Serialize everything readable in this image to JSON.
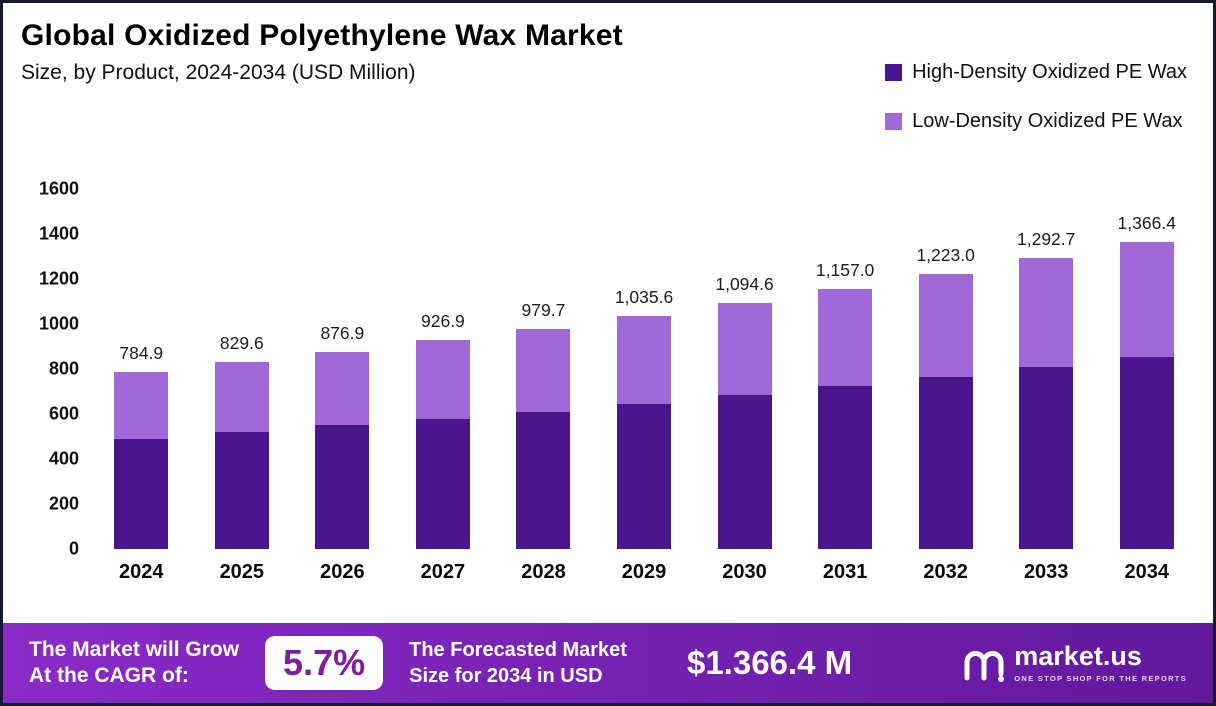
{
  "header": {
    "title": "Global Oxidized Polyethylene Wax Market",
    "subtitle": "Size, by Product, 2024-2034 (USD Million)"
  },
  "legend": {
    "items": [
      {
        "label": "High-Density Oxidized PE Wax",
        "color": "#49168B"
      },
      {
        "label": "Low-Density Oxidized PE Wax",
        "color": "#A168D8"
      }
    ]
  },
  "chart_data": {
    "type": "bar",
    "stacked": true,
    "title": "Global Oxidized Polyethylene Wax Market Size, by Product, 2024-2034 (USD Million)",
    "categories": [
      "2024",
      "2025",
      "2026",
      "2027",
      "2028",
      "2029",
      "2030",
      "2031",
      "2032",
      "2033",
      "2034"
    ],
    "series": [
      {
        "name": "High-Density Oxidized PE Wax",
        "color": "#49168B",
        "values": [
          490,
          520,
          550,
          580,
          610,
          645,
          685,
          725,
          765,
          810,
          855
        ]
      },
      {
        "name": "Low-Density Oxidized PE Wax",
        "color": "#A168D8",
        "values": [
          294.9,
          309.6,
          326.9,
          346.9,
          369.7,
          390.6,
          409.6,
          432.0,
          458.0,
          482.7,
          511.4
        ]
      }
    ],
    "totals": [
      784.9,
      829.6,
      876.9,
      926.9,
      979.7,
      1035.6,
      1094.6,
      1157.0,
      1223.0,
      1292.7,
      1366.4
    ],
    "total_labels": [
      "784.9",
      "829.6",
      "876.9",
      "926.9",
      "979.7",
      "1,035.6",
      "1,094.6",
      "1,157.0",
      "1,223.0",
      "1,292.7",
      "1,366.4"
    ],
    "xlabel": "",
    "ylabel": "",
    "ylim": [
      0,
      1600
    ],
    "yticks": [
      0,
      200,
      400,
      600,
      800,
      1000,
      1200,
      1400,
      1600
    ],
    "grid": false,
    "legend_position": "top-right"
  },
  "footer": {
    "cagr_label": "The Market will Grow\nAt the CAGR of:",
    "cagr_value": "5.7%",
    "forecast_label": "The Forecasted Market\nSize for 2034 in USD",
    "forecast_value": "$1.366.4 M",
    "brand_name": "market.us",
    "brand_tagline": "ONE STOP SHOP FOR THE REPORTS"
  },
  "palette": {
    "frame_border": "#131A2C",
    "footer_start": "#8A2BC8",
    "footer_end": "#62189E",
    "accent": "#7A1FA2"
  }
}
